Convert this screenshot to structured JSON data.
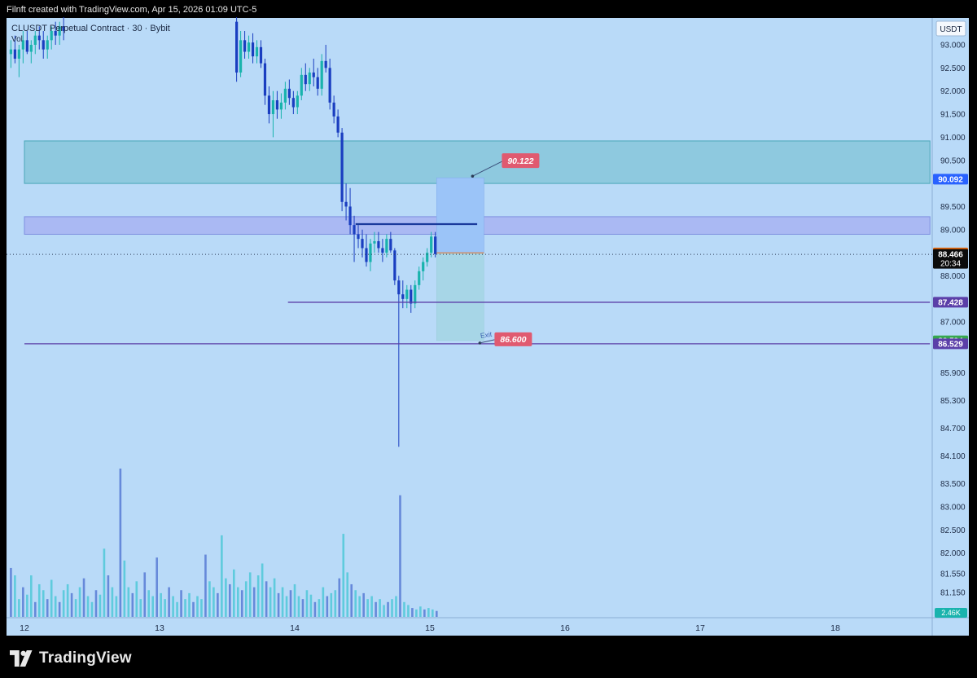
{
  "header": {
    "caption": "Filnft created with TradingView.com, Apr 15, 2026 01:09 UTC-5"
  },
  "chart": {
    "symbol": "CLUSDT Perpetual Contract · 30 · Bybit",
    "volume_label": "Vol",
    "currency": "USDT",
    "volume_badge": "2.46K"
  },
  "brand": {
    "name": "TradingView"
  },
  "colors": {
    "background": "#b9daf8",
    "bull": "#19b3ad",
    "bear": "#1a3ec0",
    "supply_zone": "#8ec9df",
    "mid_zone": "#aab9f3",
    "target_zone": "#9bc4f8",
    "stop_zone": "#a7d6e7",
    "line_navy": "#1a3a9c",
    "line_purple": "#5b3fa8"
  },
  "chart_data": {
    "type": "candlestick",
    "y_ticks": [
      93.0,
      92.5,
      92.0,
      91.5,
      91.0,
      90.5,
      89.5,
      89.0,
      88.0,
      87.0,
      85.9,
      85.3,
      84.7,
      84.1,
      83.5,
      83.0,
      82.5,
      82.0,
      81.55,
      81.15
    ],
    "y_tick_labels": [
      "93.000",
      "92.500",
      "92.000",
      "91.500",
      "91.000",
      "90.500",
      "89.500",
      "89.000",
      "88.000",
      "87.000",
      "85.900",
      "85.300",
      "84.700",
      "84.100",
      "83.500",
      "83.000",
      "82.500",
      "82.000",
      "81.550",
      "81.150"
    ],
    "x_labels": [
      {
        "day": 12,
        "label": "12"
      },
      {
        "day": 13,
        "label": "13"
      },
      {
        "day": 14,
        "label": "14"
      },
      {
        "day": 15,
        "label": "15"
      },
      {
        "day": 16,
        "label": "16"
      },
      {
        "day": 17,
        "label": "17"
      },
      {
        "day": 18,
        "label": "18"
      }
    ],
    "price_badges": [
      {
        "value": 90.092,
        "label": "90.092",
        "color": "#2962ff"
      },
      {
        "value": 88.497,
        "label": "88.497",
        "color": "#e8690f"
      },
      {
        "value": 88.466,
        "label": "88.466",
        "sub": "20:34",
        "color": "#0b0b0b"
      },
      {
        "value": 87.428,
        "label": "87.428",
        "color": "#5b3fa8"
      },
      {
        "value": 86.594,
        "label": "86.594",
        "color": "#36a64f"
      },
      {
        "value": 86.529,
        "label": "86.529",
        "color": "#5b3fa8"
      }
    ],
    "zones": [
      {
        "top": 90.92,
        "bottom": 90.0,
        "from_day": 12.0,
        "to_day": 18.7,
        "kind": "supply"
      },
      {
        "top": 89.28,
        "bottom": 88.9,
        "from_day": 12.0,
        "to_day": 18.7,
        "kind": "mid"
      }
    ],
    "hlines": [
      {
        "value": 89.12,
        "from_day": 14.45,
        "to_day": 15.35,
        "kind": "navy"
      },
      {
        "value": 87.428,
        "from_day": 13.95,
        "to_day": 18.7,
        "kind": "purple"
      },
      {
        "value": 86.529,
        "from_day": 12.0,
        "to_day": 18.7,
        "kind": "purple"
      }
    ],
    "last_price": 88.466,
    "position": {
      "entry": 88.497,
      "target": 90.122,
      "target_label": "90.122",
      "stop": 86.6,
      "stop_label": "86.600",
      "exit_label": "Exit",
      "from_day": 15.05,
      "to_day": 15.4
    },
    "candles": [
      [
        11.9,
        92.8,
        93.1,
        92.5,
        92.9
      ],
      [
        11.93,
        92.9,
        93.2,
        92.6,
        92.7
      ],
      [
        11.96,
        92.7,
        93.0,
        92.3,
        92.9
      ],
      [
        11.99,
        92.9,
        93.3,
        92.6,
        93.1
      ],
      [
        12.02,
        93.1,
        93.3,
        92.8,
        92.85
      ],
      [
        12.05,
        92.85,
        93.1,
        92.6,
        93.0
      ],
      [
        12.08,
        93.0,
        93.3,
        92.8,
        93.2
      ],
      [
        12.11,
        93.2,
        93.4,
        92.9,
        93.1
      ],
      [
        12.14,
        93.1,
        93.3,
        92.7,
        92.9
      ],
      [
        12.17,
        92.9,
        93.2,
        92.7,
        93.1
      ],
      [
        12.2,
        93.1,
        93.4,
        92.9,
        93.3
      ],
      [
        12.23,
        93.3,
        93.5,
        93.0,
        93.2
      ],
      [
        12.26,
        93.2,
        93.5,
        93.0,
        93.4
      ],
      [
        12.29,
        93.4,
        93.6,
        93.1,
        93.3
      ],
      [
        13.57,
        93.5,
        93.6,
        92.2,
        92.4
      ],
      [
        13.6,
        92.4,
        93.3,
        92.3,
        93.1
      ],
      [
        13.63,
        93.1,
        93.3,
        92.7,
        92.85
      ],
      [
        13.66,
        92.85,
        93.2,
        92.7,
        93.05
      ],
      [
        13.69,
        93.05,
        93.25,
        92.6,
        92.75
      ],
      [
        13.72,
        92.75,
        93.1,
        92.6,
        92.95
      ],
      [
        13.75,
        92.95,
        93.1,
        92.5,
        92.6
      ],
      [
        13.78,
        92.6,
        92.7,
        91.7,
        91.9
      ],
      [
        13.81,
        91.9,
        92.1,
        91.3,
        91.5
      ],
      [
        13.84,
        91.5,
        92.0,
        91.0,
        91.8
      ],
      [
        13.87,
        91.8,
        92.0,
        91.4,
        91.6
      ],
      [
        13.9,
        91.6,
        91.95,
        91.4,
        91.75
      ],
      [
        13.93,
        91.75,
        92.2,
        91.6,
        92.05
      ],
      [
        13.96,
        92.05,
        92.25,
        91.7,
        91.85
      ],
      [
        13.99,
        91.85,
        92.0,
        91.5,
        91.65
      ],
      [
        14.02,
        91.65,
        92.0,
        91.5,
        91.9
      ],
      [
        14.05,
        91.9,
        92.5,
        91.8,
        92.35
      ],
      [
        14.08,
        92.35,
        92.6,
        92.0,
        92.15
      ],
      [
        14.11,
        92.15,
        92.5,
        92.0,
        92.4
      ],
      [
        14.14,
        92.4,
        92.7,
        92.1,
        92.3
      ],
      [
        14.17,
        92.3,
        92.5,
        91.9,
        92.05
      ],
      [
        14.2,
        92.05,
        92.8,
        91.9,
        92.65
      ],
      [
        14.23,
        92.65,
        93.0,
        92.4,
        92.5
      ],
      [
        14.26,
        92.5,
        92.7,
        91.6,
        91.75
      ],
      [
        14.29,
        91.75,
        91.9,
        91.3,
        91.45
      ],
      [
        14.32,
        91.45,
        91.6,
        91.0,
        91.1
      ],
      [
        14.35,
        91.1,
        91.2,
        89.4,
        89.6
      ],
      [
        14.38,
        89.6,
        90.0,
        89.2,
        89.5
      ],
      [
        14.41,
        89.5,
        89.9,
        88.9,
        89.1
      ],
      [
        14.44,
        89.1,
        89.3,
        88.3,
        88.9
      ],
      [
        14.47,
        88.9,
        89.1,
        88.6,
        88.8
      ],
      [
        14.5,
        88.8,
        89.0,
        88.4,
        88.6
      ],
      [
        14.53,
        88.6,
        88.9,
        88.2,
        88.3
      ],
      [
        14.56,
        88.3,
        88.8,
        88.1,
        88.7
      ],
      [
        14.59,
        88.7,
        88.95,
        88.5,
        88.75
      ],
      [
        14.62,
        88.75,
        88.95,
        88.5,
        88.6
      ],
      [
        14.65,
        88.6,
        88.8,
        88.3,
        88.5
      ],
      [
        14.68,
        88.5,
        88.9,
        88.4,
        88.8
      ],
      [
        14.71,
        88.8,
        88.95,
        88.5,
        88.55
      ],
      [
        14.74,
        88.55,
        88.6,
        87.8,
        87.9
      ],
      [
        14.77,
        87.9,
        88.0,
        84.3,
        87.6
      ],
      [
        14.8,
        87.6,
        87.9,
        87.3,
        87.5
      ],
      [
        14.83,
        87.5,
        87.8,
        87.3,
        87.7
      ],
      [
        14.86,
        87.7,
        87.8,
        87.2,
        87.4
      ],
      [
        14.89,
        87.4,
        87.9,
        87.3,
        87.8
      ],
      [
        14.92,
        87.8,
        88.2,
        87.7,
        88.1
      ],
      [
        14.95,
        88.1,
        88.4,
        87.9,
        88.3
      ],
      [
        14.98,
        88.3,
        88.6,
        88.2,
        88.5
      ],
      [
        15.01,
        88.5,
        88.95,
        88.4,
        88.85
      ],
      [
        15.04,
        88.85,
        88.95,
        88.4,
        88.47
      ]
    ],
    "volumes": [
      [
        11.9,
        0.33
      ],
      [
        11.93,
        0.28
      ],
      [
        11.96,
        0.12
      ],
      [
        11.99,
        0.2
      ],
      [
        12.02,
        0.15
      ],
      [
        12.05,
        0.28
      ],
      [
        12.08,
        0.1
      ],
      [
        12.11,
        0.22
      ],
      [
        12.14,
        0.18
      ],
      [
        12.17,
        0.12
      ],
      [
        12.2,
        0.25
      ],
      [
        12.23,
        0.14
      ],
      [
        12.26,
        0.1
      ],
      [
        12.29,
        0.18
      ],
      [
        12.32,
        0.22
      ],
      [
        12.35,
        0.16
      ],
      [
        12.38,
        0.12
      ],
      [
        12.41,
        0.2
      ],
      [
        12.44,
        0.26
      ],
      [
        12.47,
        0.14
      ],
      [
        12.5,
        0.1
      ],
      [
        12.53,
        0.18
      ],
      [
        12.56,
        0.15
      ],
      [
        12.59,
        0.46
      ],
      [
        12.62,
        0.28
      ],
      [
        12.65,
        0.2
      ],
      [
        12.68,
        0.14
      ],
      [
        12.71,
        1.0
      ],
      [
        12.74,
        0.38
      ],
      [
        12.77,
        0.2
      ],
      [
        12.8,
        0.16
      ],
      [
        12.83,
        0.24
      ],
      [
        12.86,
        0.12
      ],
      [
        12.89,
        0.3
      ],
      [
        12.92,
        0.18
      ],
      [
        12.95,
        0.14
      ],
      [
        12.98,
        0.4
      ],
      [
        13.01,
        0.16
      ],
      [
        13.04,
        0.12
      ],
      [
        13.07,
        0.2
      ],
      [
        13.1,
        0.14
      ],
      [
        13.13,
        0.1
      ],
      [
        13.16,
        0.18
      ],
      [
        13.19,
        0.12
      ],
      [
        13.22,
        0.16
      ],
      [
        13.25,
        0.1
      ],
      [
        13.28,
        0.14
      ],
      [
        13.31,
        0.12
      ],
      [
        13.34,
        0.42
      ],
      [
        13.37,
        0.24
      ],
      [
        13.4,
        0.2
      ],
      [
        13.43,
        0.16
      ],
      [
        13.46,
        0.55
      ],
      [
        13.49,
        0.26
      ],
      [
        13.52,
        0.22
      ],
      [
        13.55,
        0.32
      ],
      [
        13.58,
        0.2
      ],
      [
        13.61,
        0.18
      ],
      [
        13.64,
        0.24
      ],
      [
        13.67,
        0.3
      ],
      [
        13.7,
        0.2
      ],
      [
        13.73,
        0.28
      ],
      [
        13.76,
        0.36
      ],
      [
        13.79,
        0.24
      ],
      [
        13.82,
        0.2
      ],
      [
        13.85,
        0.26
      ],
      [
        13.88,
        0.16
      ],
      [
        13.91,
        0.2
      ],
      [
        13.94,
        0.14
      ],
      [
        13.97,
        0.18
      ],
      [
        14.0,
        0.22
      ],
      [
        14.03,
        0.14
      ],
      [
        14.06,
        0.12
      ],
      [
        14.09,
        0.18
      ],
      [
        14.12,
        0.15
      ],
      [
        14.15,
        0.1
      ],
      [
        14.18,
        0.12
      ],
      [
        14.21,
        0.2
      ],
      [
        14.24,
        0.14
      ],
      [
        14.27,
        0.16
      ],
      [
        14.3,
        0.18
      ],
      [
        14.33,
        0.26
      ],
      [
        14.36,
        0.56
      ],
      [
        14.39,
        0.3
      ],
      [
        14.42,
        0.22
      ],
      [
        14.45,
        0.18
      ],
      [
        14.48,
        0.14
      ],
      [
        14.51,
        0.16
      ],
      [
        14.54,
        0.12
      ],
      [
        14.57,
        0.14
      ],
      [
        14.6,
        0.1
      ],
      [
        14.63,
        0.12
      ],
      [
        14.66,
        0.08
      ],
      [
        14.69,
        0.1
      ],
      [
        14.72,
        0.12
      ],
      [
        14.75,
        0.14
      ],
      [
        14.78,
        0.82
      ],
      [
        14.81,
        0.1
      ],
      [
        14.84,
        0.08
      ],
      [
        14.87,
        0.06
      ],
      [
        14.9,
        0.05
      ],
      [
        14.93,
        0.07
      ],
      [
        14.96,
        0.05
      ],
      [
        14.99,
        0.06
      ],
      [
        15.02,
        0.05
      ],
      [
        15.05,
        0.04
      ]
    ]
  }
}
